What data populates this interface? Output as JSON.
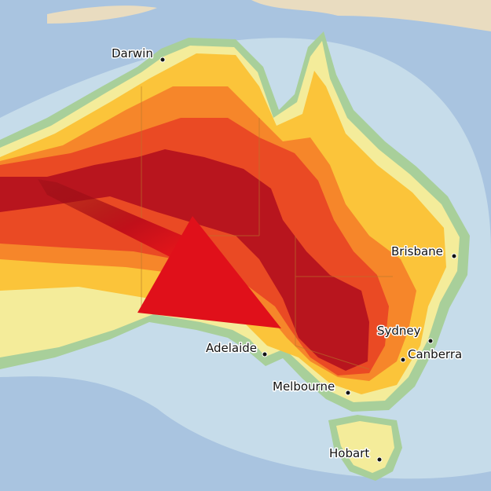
{
  "map": {
    "cities": [
      {
        "name": "Darwin"
      },
      {
        "name": "Brisbane"
      },
      {
        "name": "Sydney"
      },
      {
        "name": "Canberra"
      },
      {
        "name": "Adelaide"
      },
      {
        "name": "Melbourne"
      },
      {
        "name": "Hobart"
      }
    ],
    "colors": {
      "ocean": "#a9c4e0",
      "coast_band": "#a8cf9a",
      "light_yellow": "#f4ec9a",
      "yellow": "#fbc43a",
      "orange": "#f6862a",
      "red_orange": "#ea4a24",
      "dark_red": "#b8151e",
      "arrow": "#e0101a"
    }
  }
}
